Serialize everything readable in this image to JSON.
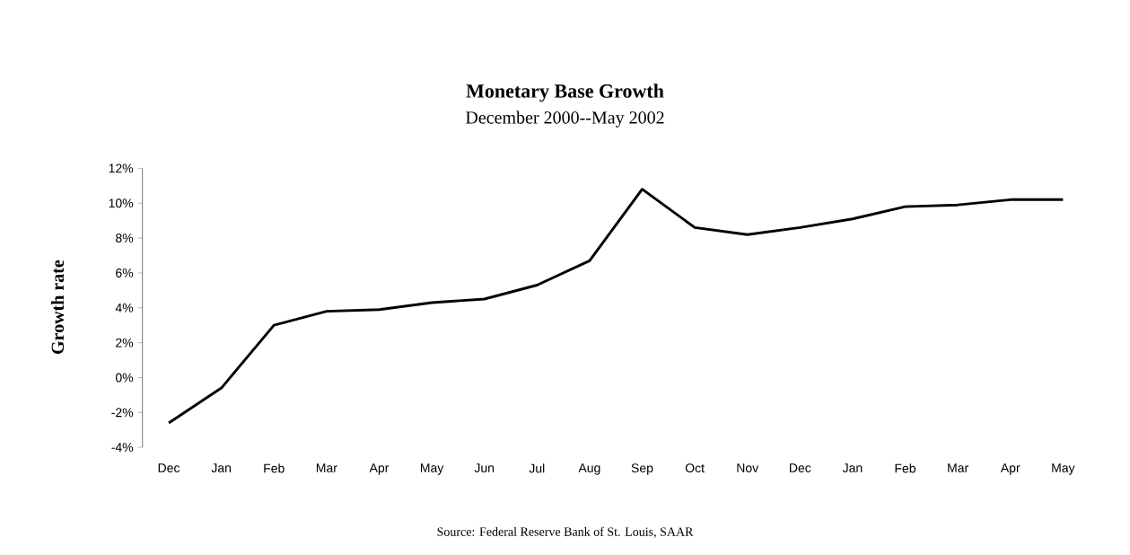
{
  "chart_data": {
    "type": "line",
    "title": "Monetary Base Growth",
    "subtitle": "December 2000--May 2002",
    "ylabel": "Growth rate",
    "annotations": [
      "Source: Federal Reserve Bank of St. Louis, SAAR"
    ],
    "categories": [
      "Dec",
      "Jan",
      "Feb",
      "Mar",
      "Apr",
      "May",
      "Jun",
      "Jul",
      "Aug",
      "Sep",
      "Oct",
      "Nov",
      "Dec",
      "Jan",
      "Feb",
      "Mar",
      "Apr",
      "May"
    ],
    "values": [
      -2.6,
      -0.6,
      3.0,
      3.8,
      3.9,
      4.3,
      4.5,
      5.3,
      6.7,
      10.8,
      8.6,
      8.2,
      8.6,
      9.1,
      9.8,
      9.9,
      10.2,
      10.2
    ],
    "color": "#000000",
    "line_style": "solid",
    "ylim": [
      -4,
      12
    ],
    "yticks": [
      {
        "value": -4,
        "label": "-4%"
      },
      {
        "value": -2,
        "label": "-2%"
      },
      {
        "value": 0,
        "label": "0%"
      },
      {
        "value": 2,
        "label": "2%"
      },
      {
        "value": 4,
        "label": "4%"
      },
      {
        "value": 6,
        "label": "6%"
      },
      {
        "value": 8,
        "label": "8%"
      },
      {
        "value": 10,
        "label": "10%"
      },
      {
        "value": 12,
        "label": "12%"
      }
    ]
  }
}
